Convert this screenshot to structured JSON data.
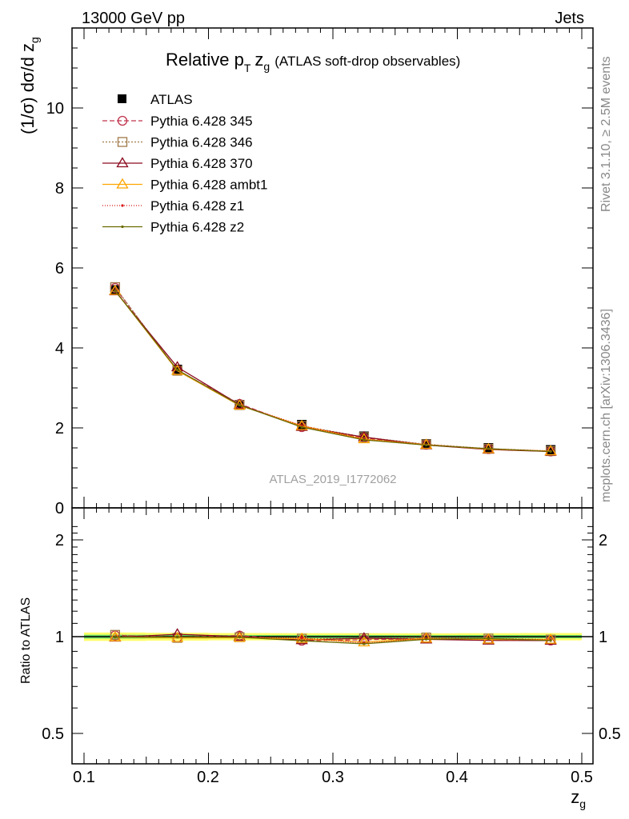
{
  "header": {
    "left": "13000 GeV pp",
    "right": "Jets"
  },
  "side_labels": {
    "rivet": "Rivet 3.1.10, ≥ 2.5M events",
    "mcplots": "mcplots.cern.ch [arXiv:1306.3436]"
  },
  "watermark": "ATLAS_2019_I1772062",
  "chart_data": {
    "type": "line",
    "title": {
      "main": "Relative p",
      "main_sub": "T",
      "var": "z",
      "var_sub": "g",
      "suffix": "(ATLAS soft-drop observables)"
    },
    "xlabel": {
      "base": "z",
      "sub": "g"
    },
    "ylabel": {
      "prefix": "(1/σ) dσ/d z",
      "sub": "g"
    },
    "ratio_ylabel": "Ratio to ATLAS",
    "xlim": [
      0.09,
      0.51
    ],
    "ylim": [
      0,
      12
    ],
    "ratio_ylim": [
      0.35,
      2.35
    ],
    "ratio_log_scale": true,
    "x_ticks": [
      "0.1",
      "0.2",
      "0.3",
      "0.4",
      "0.5"
    ],
    "y_ticks": [
      "0",
      "2",
      "4",
      "6",
      "8",
      "10"
    ],
    "ratio_ticks": [
      "0.5",
      "1",
      "2"
    ],
    "x": [
      0.125,
      0.175,
      0.225,
      0.275,
      0.325,
      0.375,
      0.425,
      0.475
    ],
    "data": {
      "name": "ATLAS",
      "values": [
        5.45,
        3.46,
        2.58,
        2.08,
        1.79,
        1.6,
        1.5,
        1.45
      ],
      "color": "#000000",
      "band_color": "#ffff66",
      "band_inner_color": "#66dd66"
    },
    "series": [
      {
        "name": "Pythia 6.428 345",
        "values": [
          5.5,
          3.44,
          2.6,
          2.02,
          1.75,
          1.58,
          1.47,
          1.41
        ],
        "color": "#c0344c",
        "dash": "6,3",
        "marker": "circle"
      },
      {
        "name": "Pythia 6.428 346",
        "values": [
          5.52,
          3.43,
          2.57,
          2.05,
          1.77,
          1.59,
          1.48,
          1.42
        ],
        "color": "#a07848",
        "dash": "2,2",
        "marker": "square"
      },
      {
        "name": "Pythia 6.428 370",
        "values": [
          5.42,
          3.52,
          2.58,
          2.03,
          1.77,
          1.57,
          1.46,
          1.41
        ],
        "color": "#8b0a1e",
        "dash": "",
        "marker": "triangle"
      },
      {
        "name": "Pythia 6.428 ambt1",
        "values": [
          5.43,
          3.43,
          2.56,
          2.05,
          1.72,
          1.58,
          1.47,
          1.42
        ],
        "color": "#ffa500",
        "dash": "",
        "marker": "triangle"
      },
      {
        "name": "Pythia 6.428 z1",
        "values": [
          5.44,
          3.45,
          2.57,
          2.06,
          1.71,
          1.58,
          1.48,
          1.42
        ],
        "color": "#d81818",
        "dash": "1,2",
        "marker": "dot"
      },
      {
        "name": "Pythia 6.428 z2",
        "values": [
          5.43,
          3.45,
          2.57,
          2.02,
          1.7,
          1.57,
          1.48,
          1.41
        ],
        "color": "#6b6b00",
        "dash": "",
        "marker": "dot"
      }
    ]
  }
}
